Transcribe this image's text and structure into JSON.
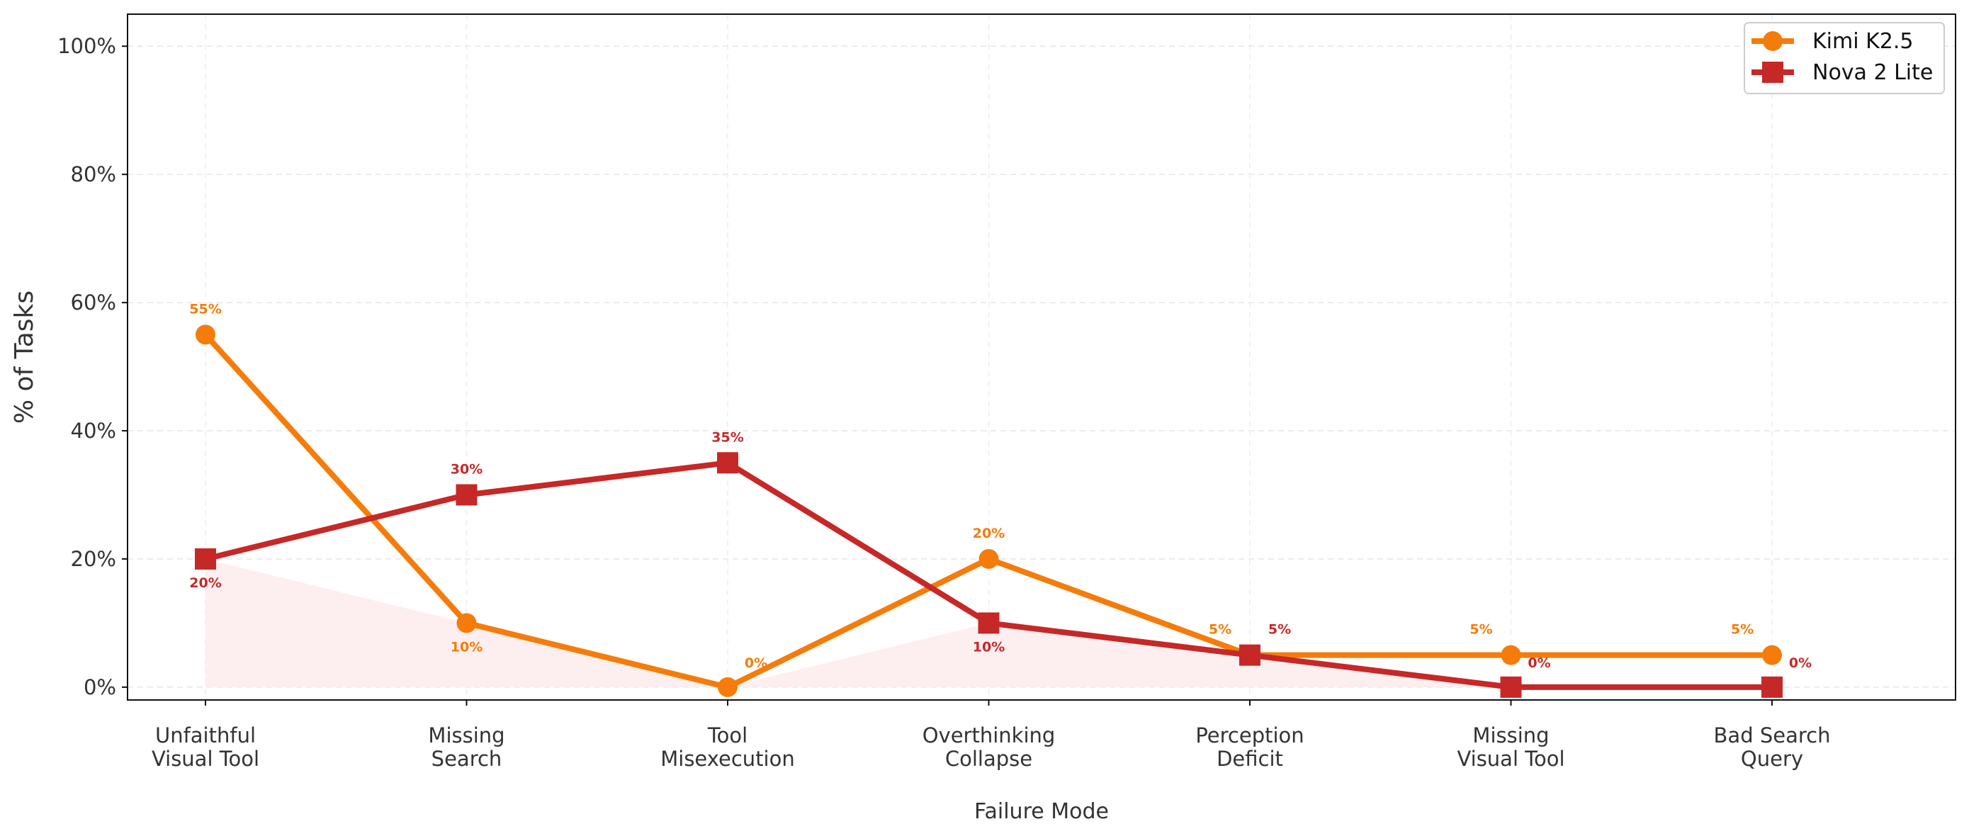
{
  "chart_data": {
    "type": "line",
    "xlabel": "Failure Mode",
    "ylabel": "% of Tasks",
    "ylim": [
      -2,
      105
    ],
    "yticks": [
      0,
      20,
      40,
      60,
      80,
      100
    ],
    "ytick_labels": [
      "0%",
      "20%",
      "40%",
      "60%",
      "80%",
      "100%"
    ],
    "grid": true,
    "legend_position": "top-right",
    "categories": [
      [
        "Unfaithful",
        "Visual Tool"
      ],
      [
        "Missing",
        "Search"
      ],
      [
        "Tool",
        "Misexecution"
      ],
      [
        "Overthinking",
        "Collapse"
      ],
      [
        "Perception",
        "Deficit"
      ],
      [
        "Missing",
        "Visual Tool"
      ],
      [
        "Bad Search",
        "Query"
      ]
    ],
    "series": [
      {
        "name": "Kimi K2.5",
        "marker": "circle",
        "color": "#f57c0b",
        "values": [
          55,
          10,
          0,
          20,
          5,
          5,
          5
        ],
        "labels": [
          "55%",
          "10%",
          "0%",
          "20%",
          "5%",
          "5%",
          "5%"
        ]
      },
      {
        "name": "Nova 2 Lite",
        "marker": "square",
        "color": "#c62828",
        "values": [
          20,
          30,
          35,
          10,
          5,
          0,
          0
        ],
        "labels": [
          "20%",
          "30%",
          "35%",
          "10%",
          "5%",
          "0%",
          "0%"
        ]
      }
    ],
    "shade_color": "#fdecec"
  }
}
